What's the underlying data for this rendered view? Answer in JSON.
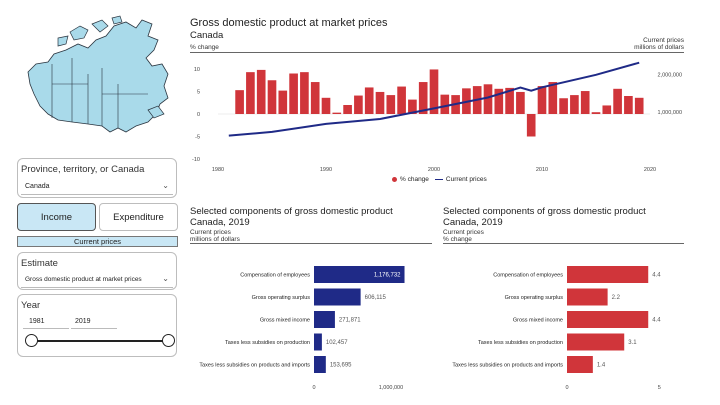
{
  "filters": {
    "province_label": "Province, territory, or Canada",
    "province_value": "Canada",
    "income_label": "Income",
    "expenditure_label": "Expenditure",
    "prices_label": "Current prices",
    "estimate_label": "Estimate",
    "estimate_value": "Gross domestic product at market prices",
    "year_label": "Year",
    "year_start": "1981",
    "year_end": "2019"
  },
  "main_chart": {
    "title": "Gross domestic product at market prices",
    "subtitle": "Canada",
    "left_axis_label": "% change",
    "right_axis_label_1": "Current prices",
    "right_axis_label_2": "millions of dollars",
    "legend_pct": "% change",
    "legend_cp": "Current prices",
    "left_ticks": [
      "10",
      "5",
      "0",
      "-5",
      "-10"
    ],
    "right_ticks": [
      "2,000,000",
      "1,000,000"
    ],
    "x_ticks": [
      "1980",
      "1990",
      "2000",
      "2010",
      "2020"
    ]
  },
  "left_bar_chart": {
    "title": "Selected components of gross domestic product",
    "subtitle": "Canada, 2019",
    "unit_1": "Current prices",
    "unit_2": "millions of dollars",
    "axis_ticks": [
      "0",
      "1,000,000"
    ]
  },
  "right_bar_chart": {
    "title": "Selected components of gross domestic product",
    "subtitle": "Canada, 2019",
    "unit_1": "Current prices",
    "unit_2": "% change",
    "axis_ticks": [
      "0",
      "5"
    ]
  },
  "colors": {
    "red": "#d0353a",
    "navy": "#1f2a87",
    "accent": "#c9e7f5",
    "map": "#a9daea"
  },
  "chart_data": [
    {
      "type": "bar",
      "title": "Gross domestic product at market prices",
      "series": [
        {
          "name": "% change",
          "type": "bar",
          "x": [
            1982,
            1983,
            1984,
            1985,
            1986,
            1987,
            1988,
            1989,
            1990,
            1991,
            1992,
            1993,
            1994,
            1995,
            1996,
            1997,
            1998,
            1999,
            2000,
            2001,
            2002,
            2003,
            2004,
            2005,
            2006,
            2007,
            2008,
            2009,
            2010,
            2011,
            2012,
            2013,
            2014,
            2015,
            2016,
            2017,
            2018,
            2019
          ],
          "values": [
            5.3,
            9.3,
            9.8,
            7.5,
            5.2,
            9.0,
            9.3,
            7.1,
            3.6,
            0.3,
            2.0,
            4.1,
            5.9,
            4.9,
            4.2,
            6.1,
            3.2,
            7.1,
            9.9,
            4.3,
            4.2,
            5.7,
            6.2,
            6.6,
            5.6,
            5.8,
            4.9,
            -5.0,
            6.2,
            7.1,
            3.5,
            4.2,
            5.1,
            0.4,
            1.9,
            5.6,
            4.0,
            3.6
          ]
        },
        {
          "name": "Current prices",
          "type": "line",
          "axis": "right",
          "x": [
            1981,
            1985,
            1990,
            1995,
            2000,
            2005,
            2008,
            2009,
            2010,
            2015,
            2019
          ],
          "values": [
            380000,
            480000,
            690000,
            820000,
            1100000,
            1390000,
            1650000,
            1570000,
            1660000,
            1990000,
            2310000
          ]
        }
      ],
      "xlim": [
        1980,
        2020
      ],
      "ylim": [
        -10,
        12
      ],
      "y2lim": [
        0,
        2500000
      ]
    },
    {
      "type": "bar",
      "title": "Selected components of gross domestic product",
      "subtitle": "Canada, 2019",
      "unit": "millions of dollars",
      "categories": [
        "Compensation of employees",
        "Gross operating surplus",
        "Gross mixed income",
        "Taxes less subsidies on production",
        "Taxes less subsidies on products and imports"
      ],
      "values": [
        1176732,
        606115,
        271871,
        102457,
        153695
      ],
      "labels": [
        "1,176,732",
        "606,115",
        "271,871",
        "102,457",
        "153,695"
      ],
      "xlim": [
        0,
        1300000
      ]
    },
    {
      "type": "bar",
      "title": "Selected components of gross domestic product",
      "subtitle": "Canada, 2019",
      "unit": "% change",
      "categories": [
        "Compensation of employees",
        "Gross operating surplus",
        "Gross mixed income",
        "Taxes less subsidies on production",
        "Taxes less subsidies on products and imports"
      ],
      "values": [
        4.4,
        2.2,
        4.4,
        3.1,
        1.4
      ],
      "labels": [
        "4.4",
        "2.2",
        "4.4",
        "3.1",
        "1.4"
      ],
      "xlim": [
        0,
        5.2
      ]
    }
  ]
}
